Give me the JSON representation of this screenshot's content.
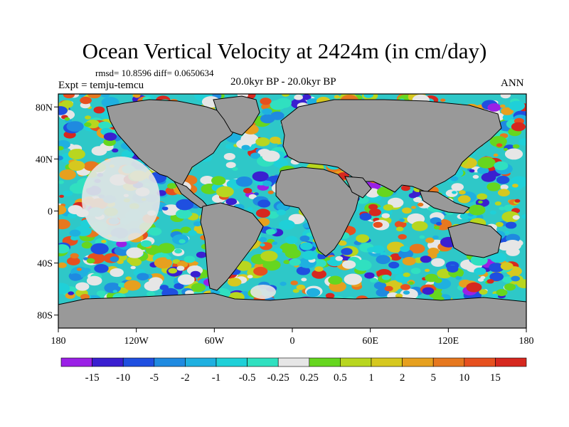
{
  "chart_data": {
    "type": "heatmap",
    "title": "Ocean Vertical Velocity at 2424m (in cm/day)",
    "stats_text": "rmsd= 10.8596 diff= 0.0650634",
    "experiment_text": "Expt = temju-temcu",
    "period_text": "20.0kyr BP - 20.0kyr BP",
    "season_text": "ANN",
    "x_ticks": [
      "180",
      "120W",
      "60W",
      "0",
      "60E",
      "120E",
      "180"
    ],
    "y_ticks": [
      "80N",
      "40N",
      "0",
      "40S",
      "80S"
    ],
    "xlim": [
      -180,
      180
    ],
    "ylim": [
      -90,
      90
    ],
    "land_color": "#999999",
    "colorbar": {
      "labels": [
        "-15",
        "-10",
        "-5",
        "-2",
        "-1",
        "-0.5",
        "-0.25",
        "0.25",
        "0.5",
        "1",
        "2",
        "5",
        "10",
        "15"
      ],
      "colors": [
        "#9a20e6",
        "#3a1fd0",
        "#1f4fe0",
        "#1f8ae0",
        "#1fb0e0",
        "#1fd0d8",
        "#30e0c0",
        "#e6e6e6",
        "#66d61f",
        "#b8d61f",
        "#d6c81f",
        "#e6a01f",
        "#e6781f",
        "#e6501f",
        "#d6281f"
      ]
    }
  }
}
